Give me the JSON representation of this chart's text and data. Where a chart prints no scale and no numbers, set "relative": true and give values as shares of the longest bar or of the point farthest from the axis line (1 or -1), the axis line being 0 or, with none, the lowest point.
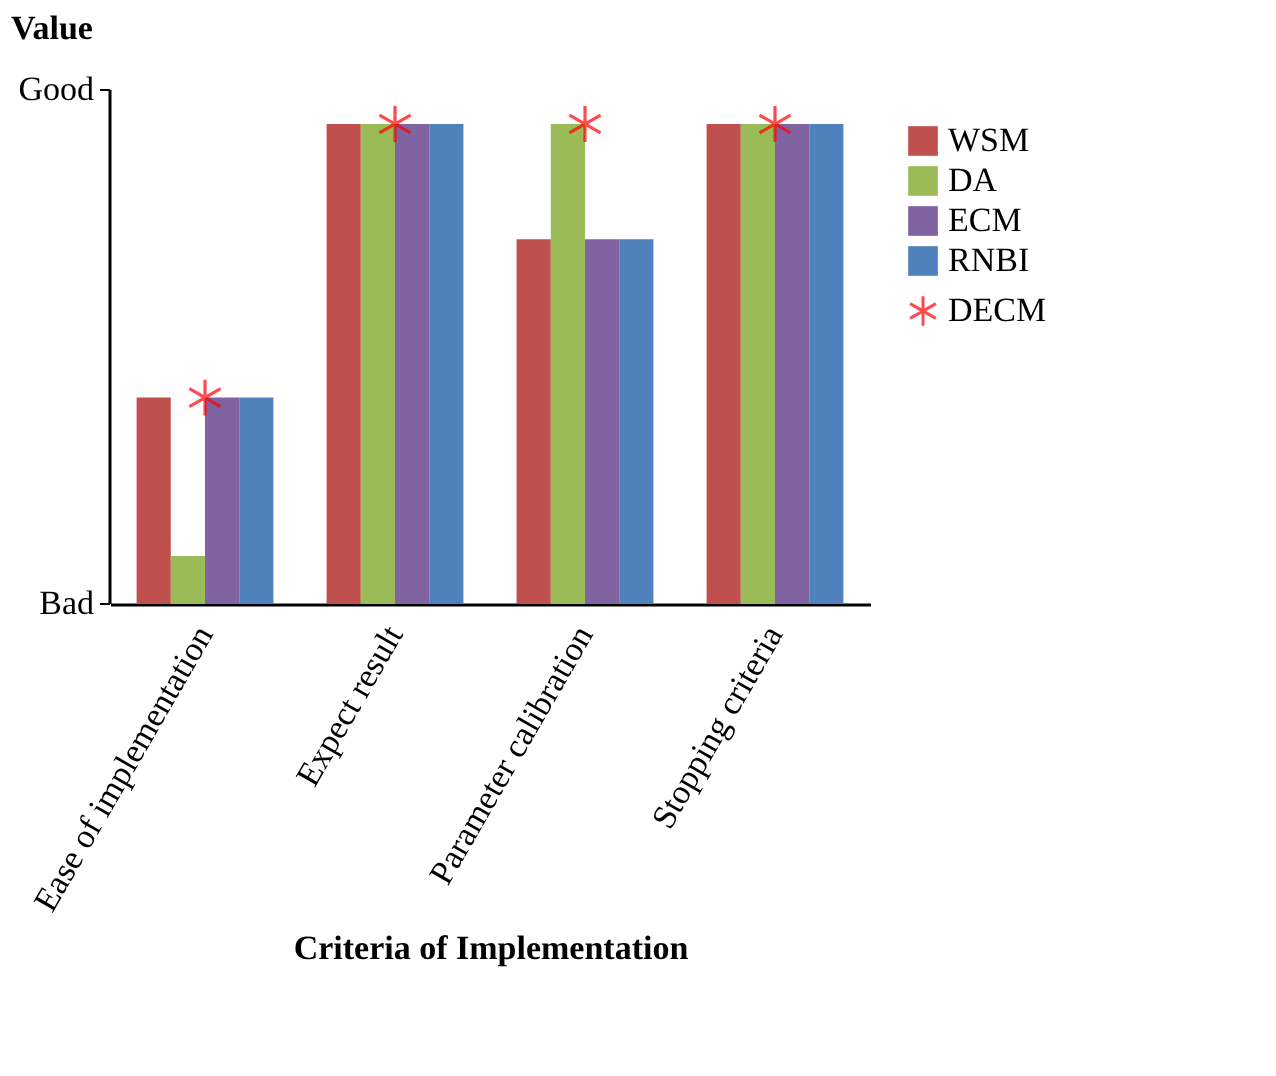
{
  "chart_data": {
    "type": "bar",
    "xlabel": "Criteria of Implementation",
    "ylabel": "Value",
    "relative": true,
    "categories": [
      "Ease of implementation",
      "Expect result",
      "Parameter calibration",
      "Stopping criteria"
    ],
    "series": [
      {
        "name": "DECM",
        "type": "scatter",
        "marker": "cross",
        "color": "#ff0000",
        "values": [
          0.43,
          1,
          1,
          1
        ]
      },
      {
        "name": "WSM",
        "color": "#c0504d",
        "values": [
          0.43,
          1,
          0.76,
          1
        ]
      },
      {
        "name": "DA",
        "color": "#9bbb59",
        "values": [
          0.1,
          1,
          1,
          1
        ]
      },
      {
        "name": "ECM",
        "color": "#8064a2",
        "values": [
          0.43,
          1,
          0.76,
          1
        ]
      },
      {
        "name": "RNBI",
        "color": "#4f81bd",
        "values": [
          0.43,
          1,
          0.76,
          1
        ]
      }
    ],
    "annotations": [
      "Bad",
      "Good"
    ],
    "grid": false,
    "legend": "right"
  }
}
